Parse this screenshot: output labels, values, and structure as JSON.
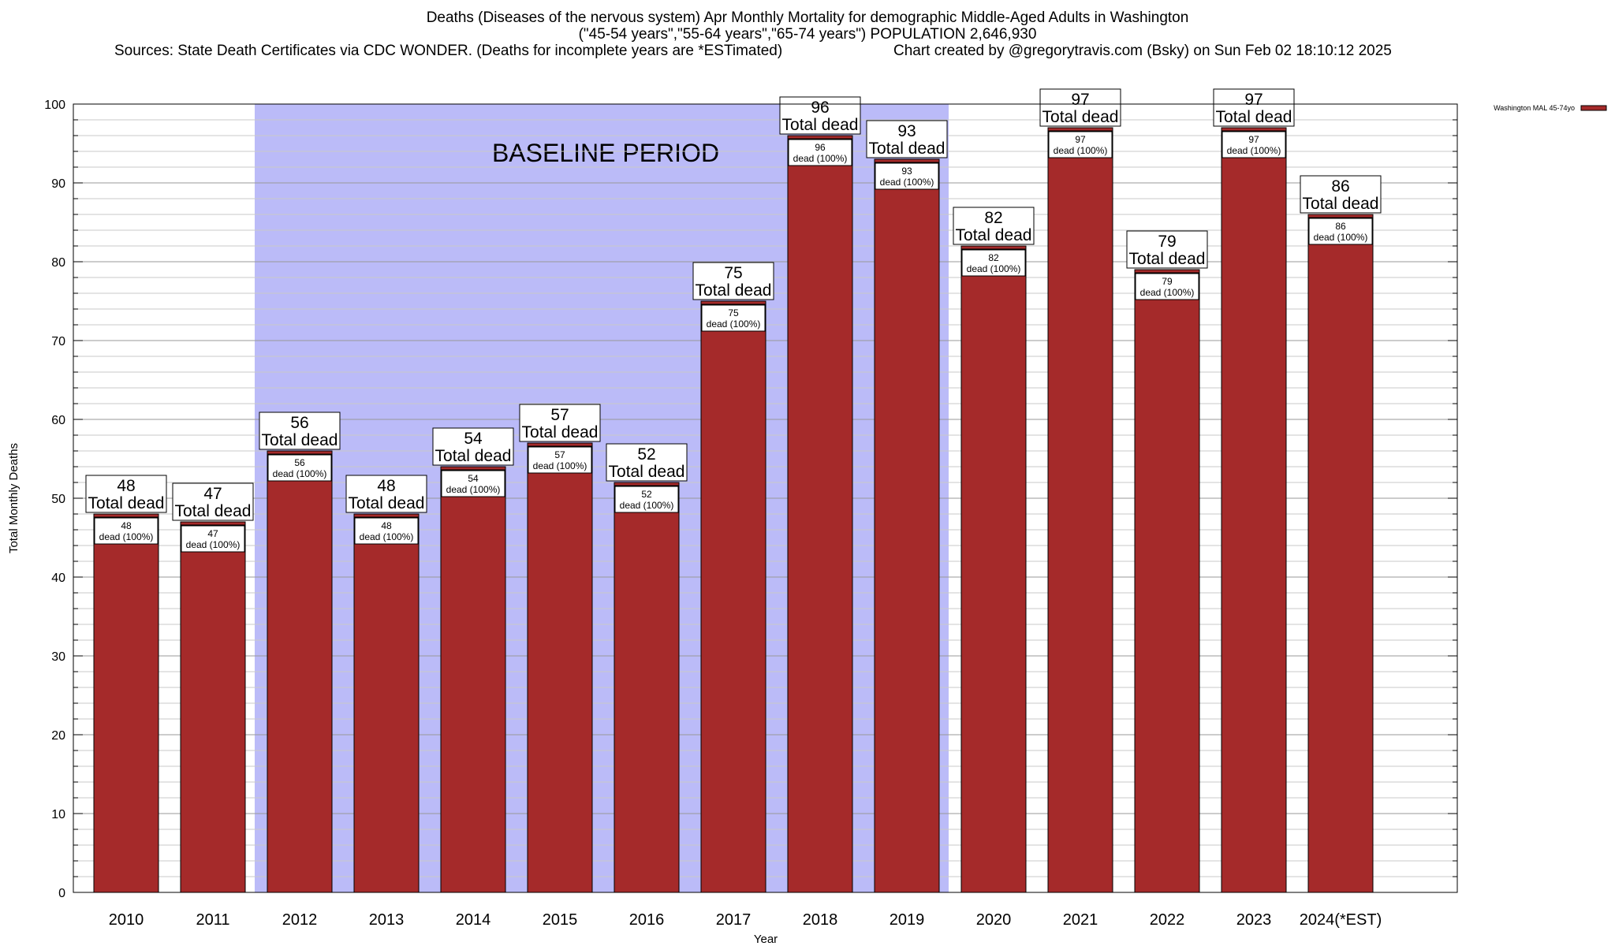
{
  "title": {
    "line1": "Deaths (Diseases of the nervous system) Apr Monthly Mortality for demographic Middle-Aged Adults in Washington",
    "line2": "(\"45-54 years\",\"55-64 years\",\"65-74 years\") POPULATION 2,646,930",
    "sources": "Sources: State Death Certificates via CDC WONDER. (Deaths for incomplete years are *ESTimated)",
    "credit": "Chart created by @gregorytravis.com (Bsky) on Sun Feb 02 18:10:12 2025"
  },
  "chart_data": {
    "type": "bar",
    "categories": [
      "2010",
      "2011",
      "2012",
      "2013",
      "2014",
      "2015",
      "2016",
      "2017",
      "2018",
      "2019",
      "2020",
      "2021",
      "2022",
      "2023",
      "2024(*EST)"
    ],
    "series": [
      {
        "name": "Washington MAL 45-74yo",
        "values": [
          48,
          47,
          56,
          48,
          54,
          57,
          52,
          75,
          96,
          93,
          82,
          97,
          79,
          97,
          86
        ],
        "color": "#a52a2a"
      }
    ],
    "xlabel": "Year",
    "ylabel": "Total Monthly Deaths",
    "ylim": [
      0,
      100
    ],
    "yticks": [
      0,
      10,
      20,
      30,
      40,
      50,
      60,
      70,
      80,
      90,
      100
    ],
    "minor_step": 2,
    "total_label": "Total dead",
    "inner_label": "dead (100%)",
    "baseline": {
      "label": "BASELINE PERIOD",
      "from": "2012",
      "to": "2019",
      "color": "#bbbbf8"
    },
    "legend": {
      "label": "Washington MAL 45-74yo",
      "position": "top-right"
    }
  }
}
